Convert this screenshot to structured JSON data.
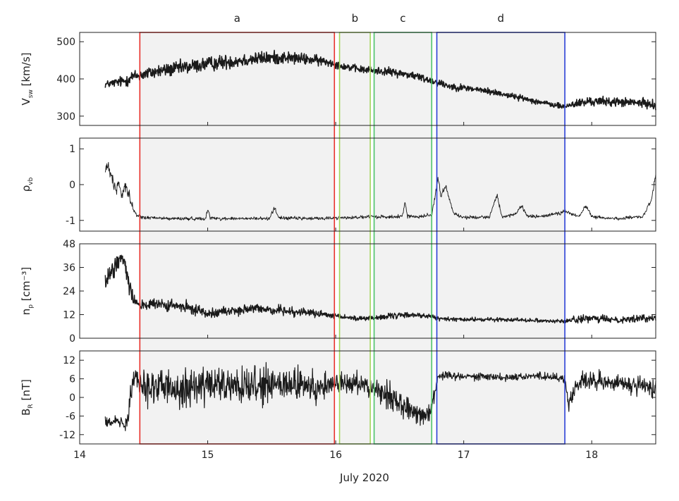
{
  "chart_data": {
    "type": "line",
    "x_axis": {
      "label": "July 2020",
      "range": [
        14,
        18.5
      ],
      "ticks": [
        14,
        15,
        16,
        17,
        18
      ],
      "tick_labels": [
        "14",
        "15",
        "16",
        "17",
        "18"
      ]
    },
    "regions": [
      {
        "label": "a",
        "x_start": 14.47,
        "x_end": 15.99,
        "color": "#e8302b"
      },
      {
        "label": "b",
        "x_start": 16.03,
        "x_end": 16.27,
        "color": "#a3d65c"
      },
      {
        "label": "c",
        "x_start": 16.3,
        "x_end": 16.75,
        "color": "#4cc36a"
      },
      {
        "label": "d",
        "x_start": 16.79,
        "x_end": 17.79,
        "color": "#2a3fd6"
      }
    ],
    "shade_color": "#f2f2f2",
    "panels": [
      {
        "id": "vsw",
        "ylabel": "V",
        "ylabel_sub": "sw",
        "ylabel_unit": " [km/s]",
        "ylim": [
          275,
          525
        ],
        "yticks": [
          300,
          400,
          500
        ],
        "ytick_labels": [
          "300",
          "400",
          "500"
        ],
        "line_width": 1.6,
        "series": {
          "x": [
            14.2,
            14.28,
            14.36,
            14.4,
            14.47,
            14.6,
            14.8,
            15.0,
            15.2,
            15.4,
            15.6,
            15.8,
            15.95,
            16.05,
            16.2,
            16.4,
            16.6,
            16.75,
            16.9,
            17.1,
            17.3,
            17.5,
            17.7,
            17.79,
            17.85,
            18.0,
            18.2,
            18.4,
            18.5
          ],
          "y": [
            385,
            390,
            395,
            405,
            410,
            420,
            430,
            440,
            448,
            455,
            458,
            452,
            445,
            435,
            425,
            420,
            410,
            395,
            380,
            372,
            360,
            345,
            330,
            325,
            332,
            340,
            338,
            335,
            330
          ],
          "noise": [
            8,
            10,
            14,
            14,
            14,
            15,
            16,
            16,
            16,
            15,
            14,
            12,
            10,
            8,
            8,
            9,
            9,
            9,
            8,
            7,
            7,
            6,
            6,
            6,
            10,
            10,
            10,
            10,
            10
          ]
        }
      },
      {
        "id": "rho",
        "ylabel": "ρ",
        "ylabel_sub": "vb",
        "ylabel_unit": "",
        "ylim": [
          -1.3,
          1.3
        ],
        "yticks": [
          -1,
          0,
          1
        ],
        "ytick_labels": [
          "-1",
          "0",
          "1"
        ],
        "line_width": 0.9,
        "series": {
          "x": [
            14.2,
            14.22,
            14.25,
            14.28,
            14.3,
            14.33,
            14.36,
            14.4,
            14.44,
            14.5,
            14.7,
            14.98,
            15.0,
            15.02,
            15.1,
            15.48,
            15.52,
            15.56,
            15.8,
            16.0,
            16.3,
            16.52,
            16.54,
            16.56,
            16.6,
            16.75,
            16.8,
            16.82,
            16.86,
            16.92,
            17.0,
            17.2,
            17.26,
            17.3,
            17.4,
            17.45,
            17.5,
            17.6,
            17.79,
            17.9,
            17.95,
            18.0,
            18.05,
            18.2,
            18.4,
            18.47,
            18.5
          ],
          "y": [
            0.4,
            0.55,
            0.2,
            -0.2,
            0.1,
            -0.3,
            0.0,
            -0.5,
            -0.85,
            -0.92,
            -0.95,
            -0.95,
            -0.7,
            -0.93,
            -0.95,
            -0.95,
            -0.65,
            -0.93,
            -0.95,
            -0.93,
            -0.9,
            -0.9,
            -0.45,
            -0.88,
            -0.9,
            -0.85,
            0.2,
            -0.3,
            -0.05,
            -0.8,
            -0.92,
            -0.9,
            -0.3,
            -0.9,
            -0.85,
            -0.6,
            -0.88,
            -0.9,
            -0.75,
            -0.9,
            -0.6,
            -0.88,
            -0.92,
            -0.95,
            -0.9,
            -0.4,
            0.3
          ],
          "noise": [
            0.15,
            0.15,
            0.15,
            0.15,
            0.15,
            0.15,
            0.15,
            0.12,
            0.05,
            0.04,
            0.04,
            0.04,
            0.05,
            0.04,
            0.04,
            0.04,
            0.05,
            0.04,
            0.04,
            0.04,
            0.04,
            0.05,
            0.05,
            0.05,
            0.04,
            0.05,
            0.08,
            0.08,
            0.06,
            0.04,
            0.04,
            0.04,
            0.05,
            0.04,
            0.04,
            0.05,
            0.04,
            0.04,
            0.05,
            0.04,
            0.05,
            0.04,
            0.04,
            0.04,
            0.04,
            0.06,
            0.06
          ]
        }
      },
      {
        "id": "np",
        "ylabel": "n",
        "ylabel_sub": "p",
        "ylabel_unit": " [cm⁻³]",
        "ylim": [
          0,
          48
        ],
        "yticks": [
          0,
          12,
          24,
          36,
          48
        ],
        "ytick_labels": [
          "0",
          "12",
          "24",
          "36",
          "48"
        ],
        "line_width": 1.4,
        "series": {
          "x": [
            14.2,
            14.25,
            14.3,
            14.34,
            14.38,
            14.42,
            14.47,
            14.6,
            14.8,
            15.0,
            15.2,
            15.4,
            15.6,
            15.8,
            16.0,
            16.2,
            16.4,
            16.6,
            16.75,
            16.8,
            17.0,
            17.2,
            17.4,
            17.6,
            17.79,
            17.85,
            18.0,
            18.2,
            18.4,
            18.5
          ],
          "y": [
            28,
            33,
            40,
            42,
            30,
            20,
            17,
            17,
            16,
            13,
            14,
            15,
            14,
            13,
            11,
            10,
            11,
            12,
            11,
            10,
            9.5,
            9.5,
            9.5,
            9,
            8.5,
            9.5,
            10,
            9.5,
            10,
            10.5
          ],
          "noise": [
            5,
            5,
            4,
            4,
            5,
            3,
            2.5,
            2.5,
            2.5,
            2,
            2,
            2,
            2,
            1.5,
            1.3,
            1.2,
            1.2,
            1.2,
            1,
            0.8,
            0.8,
            0.8,
            0.8,
            0.8,
            0.8,
            1.5,
            1.5,
            1.5,
            1.5,
            1.5
          ]
        }
      },
      {
        "id": "br",
        "ylabel": "B",
        "ylabel_sub": "R",
        "ylabel_unit": " [nT]",
        "ylim": [
          -15,
          15
        ],
        "yticks": [
          -12,
          -6,
          0,
          6,
          12
        ],
        "ytick_labels": [
          "-12",
          "-6",
          "0",
          "6",
          "12"
        ],
        "line_width": 1.2,
        "series": {
          "x": [
            14.2,
            14.3,
            14.37,
            14.4,
            14.45,
            14.5,
            14.7,
            15.0,
            15.3,
            15.6,
            15.9,
            16.0,
            16.1,
            16.2,
            16.3,
            16.4,
            16.5,
            16.6,
            16.7,
            16.75,
            16.8,
            17.0,
            17.3,
            17.6,
            17.79,
            17.82,
            17.9,
            18.1,
            18.3,
            18.5
          ],
          "y": [
            -7,
            -8,
            -9,
            4,
            8,
            4,
            3,
            4,
            3,
            4,
            3,
            5,
            4,
            5,
            3,
            1,
            -2,
            -4,
            -6,
            -3,
            7,
            7,
            6.5,
            7,
            6,
            -2,
            5,
            5,
            4,
            3
          ],
          "noise": [
            1.5,
            1.5,
            2,
            4,
            4,
            5,
            5,
            5,
            5,
            5,
            4,
            3,
            3,
            2.5,
            3,
            3.5,
            3.5,
            3,
            2.5,
            2.5,
            1.2,
            1,
            1,
            1,
            1,
            3,
            2.5,
            2.5,
            2.5,
            2.5
          ]
        }
      }
    ]
  }
}
